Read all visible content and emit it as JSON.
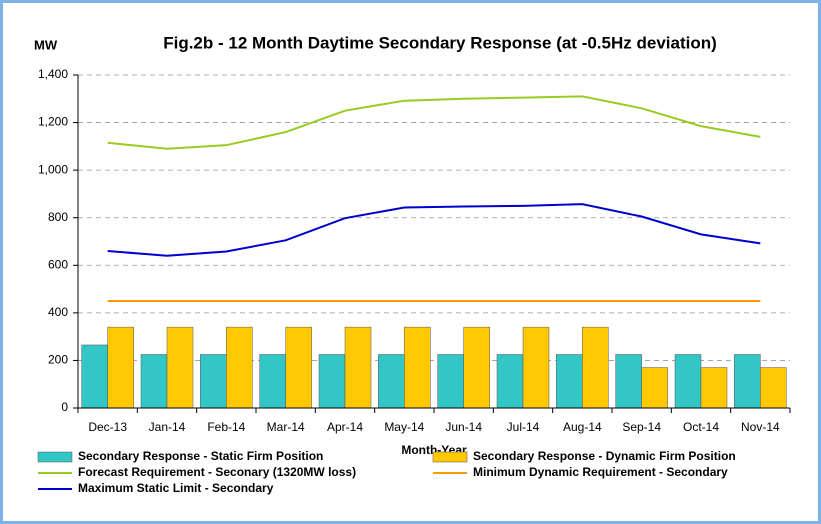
{
  "chart_data": {
    "type": "bar",
    "title": "Fig.2b - 12 Month Daytime Secondary Response (at -0.5Hz deviation)",
    "y_unit": "MW",
    "x_label": "Month-Year",
    "categories": [
      "Dec-13",
      "Jan-14",
      "Feb-14",
      "Mar-14",
      "Apr-14",
      "May-14",
      "Jun-14",
      "Jul-14",
      "Aug-14",
      "Sep-14",
      "Oct-14",
      "Nov-14"
    ],
    "series": [
      {
        "name": "Secondary Response - Static Firm Position",
        "type": "bar",
        "color": "#33c6c6",
        "values": [
          265,
          225,
          225,
          225,
          225,
          225,
          225,
          225,
          225,
          225,
          225,
          225
        ]
      },
      {
        "name": "Secondary Response - Dynamic Firm Position",
        "type": "bar",
        "color": "#ffc800",
        "values": [
          340,
          340,
          340,
          340,
          340,
          340,
          340,
          340,
          340,
          170,
          170,
          170
        ]
      },
      {
        "name": "Forecast Requirement - Seconary (1320MW loss)",
        "type": "line",
        "color": "#99cc22",
        "values": [
          1115,
          1090,
          1105,
          1160,
          1250,
          1292,
          1300,
          1305,
          1310,
          1260,
          1185,
          1140
        ]
      },
      {
        "name": "Minimum Dynamic Requirement - Secondary",
        "type": "line",
        "color": "#ff9900",
        "values": [
          450,
          450,
          450,
          450,
          450,
          450,
          450,
          450,
          450,
          450,
          450,
          450
        ]
      },
      {
        "name": "Maximum Static Limit - Secondary",
        "type": "line",
        "color": "#0000cc",
        "values": [
          660,
          640,
          658,
          705,
          798,
          843,
          847,
          850,
          857,
          805,
          730,
          692
        ]
      }
    ],
    "ylim": [
      0,
      1400
    ],
    "yticks": [
      0,
      200,
      400,
      600,
      800,
      {
        "value": 1000,
        "label": "1,000"
      },
      {
        "value": 1200,
        "label": "1,200"
      },
      {
        "value": 1400,
        "label": "1,400"
      }
    ],
    "grid": true
  }
}
